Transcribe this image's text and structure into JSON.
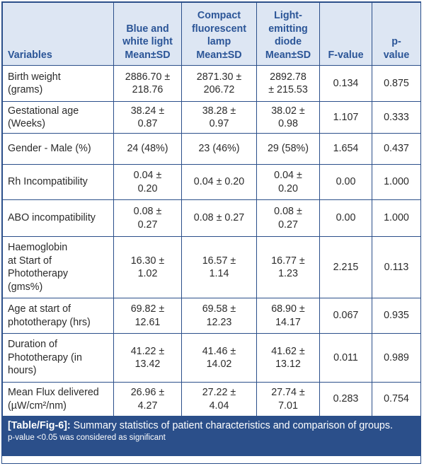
{
  "table": {
    "headers": {
      "variables": "Variables",
      "col1": [
        "Blue and",
        "white light",
        "Mean±SD"
      ],
      "col2": [
        "Compact",
        "fluorescent",
        "lamp",
        "Mean±SD"
      ],
      "col3": [
        "Light-",
        "emitting",
        "diode",
        "Mean±SD"
      ],
      "fvalue": "F-value",
      "pvalue": [
        "p-",
        "value"
      ]
    },
    "rows": [
      {
        "label": [
          "Birth weight",
          "(grams)"
        ],
        "c1": [
          "2886.70 ±",
          "218.76"
        ],
        "c2": [
          "2871.30 ±",
          "206.72"
        ],
        "c3": [
          "2892.78",
          "± 215.53"
        ],
        "f": "0.134",
        "p": "0.875"
      },
      {
        "label": [
          "Gestational age",
          "(Weeks)"
        ],
        "c1": [
          "38.24 ±",
          "0.87"
        ],
        "c2": [
          "38.28 ±",
          "0.97"
        ],
        "c3": [
          "38.02 ±",
          "0.98"
        ],
        "f": "1.107",
        "p": "0.333"
      },
      {
        "label": [
          "Gender - Male (%)"
        ],
        "c1": [
          "24 (48%)"
        ],
        "c2": [
          "23 (46%)"
        ],
        "c3": [
          "29 (58%)"
        ],
        "f": "1.654",
        "p": "0.437"
      },
      {
        "label": [
          "Rh Incompatibility"
        ],
        "c1": [
          "0.04 ±",
          "0.20"
        ],
        "c2": [
          "0.04 ± 0.20"
        ],
        "c3": [
          "0.04 ±",
          "0.20"
        ],
        "f": "0.00",
        "p": "1.000"
      },
      {
        "label": [
          "ABO incompatibility"
        ],
        "c1": [
          "0.08 ±",
          "0.27"
        ],
        "c2": [
          "0.08 ± 0.27"
        ],
        "c3": [
          "0.08 ±",
          "0.27"
        ],
        "f": "0.00",
        "p": "1.000"
      },
      {
        "label": [
          "Haemoglobin",
          "at Start of",
          "Phototherapy",
          "(gms%)"
        ],
        "c1": [
          "16.30 ±",
          "1.02"
        ],
        "c2": [
          "16.57 ±",
          "1.14"
        ],
        "c3": [
          "16.77 ±",
          "1.23"
        ],
        "f": "2.215",
        "p": "0.113"
      },
      {
        "label": [
          "Age at start of",
          "phototherapy (hrs)"
        ],
        "c1": [
          "69.82 ±",
          "12.61"
        ],
        "c2": [
          "69.58 ±",
          "12.23"
        ],
        "c3": [
          "68.90 ±",
          "14.17"
        ],
        "f": "0.067",
        "p": "0.935"
      },
      {
        "label": [
          "Duration of",
          "Phototherapy (in",
          "hours)"
        ],
        "c1": [
          "41.22 ±",
          "13.42"
        ],
        "c2": [
          "41.46 ±",
          "14.02"
        ],
        "c3": [
          "41.62 ±",
          "13.12"
        ],
        "f": "0.011",
        "p": "0.989"
      },
      {
        "label": [
          "Mean Flux delivered",
          "(µW/cm²/nm)"
        ],
        "c1": [
          "26.96 ±",
          "4.27"
        ],
        "c2": [
          "27.22 ±",
          "4.04"
        ],
        "c3": [
          "27.74 ±",
          "7.01"
        ],
        "f": "0.283",
        "p": "0.754"
      }
    ]
  },
  "caption": {
    "tag": "[Table/Fig-6]:",
    "text": " Summary statistics of patient characteristics and comparison of groups.",
    "note": "p-value <0.05 was considered as significant"
  },
  "colors": {
    "header_bg": "#dde6f3",
    "header_text": "#2b5597",
    "border": "#2b4f8a",
    "caption_bg": "#2b4f8a"
  }
}
